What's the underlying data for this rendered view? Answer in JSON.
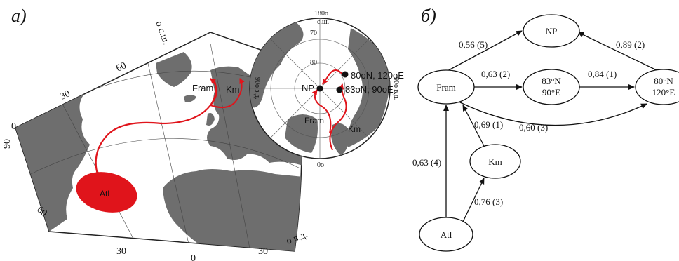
{
  "panel_a": {
    "label": "а)",
    "map_labels": {
      "lat_unit": "о с.ш.",
      "lon_unit": "о в.д.",
      "fram": "Fram",
      "km": "Km",
      "atl": "Atl",
      "lat_60": "60",
      "lat_30": "30",
      "lat_0": "0",
      "lat_90": "90",
      "lat_60b": "60",
      "lon_30w": "30",
      "lon_0": "0",
      "lon_30e": "30"
    },
    "polar_labels": {
      "lon_180": "180о",
      "lat_unit": "с.ш.",
      "lat_70": "70",
      "lat_80": "80",
      "np": "NP",
      "pt1": "80оN, 120оE",
      "pt2": "83оN, 90оE",
      "fram": "Fram",
      "km": "Km",
      "lon_0": "0о",
      "lon_90w": "90о з.д.",
      "lon_90e": "90о в.д."
    },
    "colors": {
      "track": "#e0141b",
      "land": "#6e6e6e"
    }
  },
  "panel_b": {
    "label": "б)",
    "nodes": {
      "np": "NP",
      "fram": "Fram",
      "n83": [
        "83°N",
        "90°E"
      ],
      "n80": [
        "80°N",
        "120°E"
      ],
      "km": "Km",
      "atl": "Atl"
    },
    "edges": {
      "fram_np": "0,56 (5)",
      "n80_np": "0,89 (2)",
      "fram_83": "0,63 (2)",
      "n83_80": "0,84 (1)",
      "km_fram": "0,69 (1)",
      "fram_80": "0,60 (3)",
      "atl_fram": "0,63 (4)",
      "atl_km": "0,76 (3)"
    }
  }
}
